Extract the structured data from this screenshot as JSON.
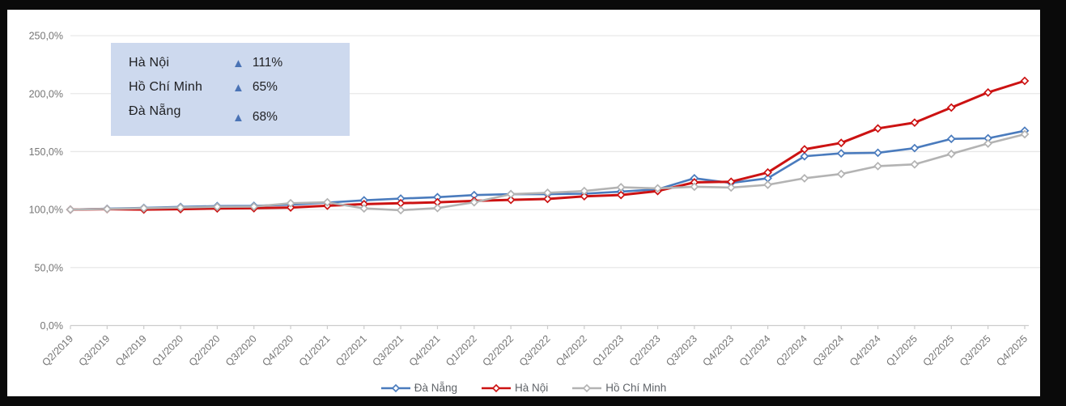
{
  "summary_box": {
    "background": "#cdd9ee",
    "triangle_color": "#4a73b5",
    "up_triangle_glyph": "▲",
    "rows": [
      {
        "label": "Hà Nội",
        "direction": "up",
        "value": "111%"
      },
      {
        "label": "Hồ Chí Minh",
        "direction": "up",
        "value": "65%"
      },
      {
        "label": "Đà Nẵng",
        "direction": "up",
        "value": "68%"
      }
    ]
  },
  "chart_data": {
    "type": "line",
    "title": "",
    "xlabel": "",
    "ylabel": "",
    "grid": true,
    "legend_position": "bottom",
    "ylim": [
      0,
      250
    ],
    "y_ticks": [
      "0,0%",
      "50,0%",
      "100,0%",
      "150,0%",
      "200,0%",
      "250,0%"
    ],
    "categories": [
      "Q2/2019",
      "Q3/2019",
      "Q4/2019",
      "Q1/2020",
      "Q2/2020",
      "Q3/2020",
      "Q4/2020",
      "Q1/2021",
      "Q2/2021",
      "Q3/2021",
      "Q4/2021",
      "Q1/2022",
      "Q2/2022",
      "Q3/2022",
      "Q4/2022",
      "Q1/2023",
      "Q2/2023",
      "Q3/2023",
      "Q4/2023",
      "Q1/2024",
      "Q2/2024",
      "Q3/2024",
      "Q4/2024",
      "Q1/2025",
      "Q2/2025",
      "Q3/2025",
      "Q4/2025"
    ],
    "series": [
      {
        "name": "Đà Nẵng",
        "color": "#4a7bbd",
        "values": [
          100,
          100.7,
          101.5,
          102.3,
          103,
          103.2,
          104.2,
          106,
          108,
          109.5,
          110.7,
          112.5,
          113.3,
          113.3,
          113.7,
          115.5,
          117.5,
          127,
          123,
          127,
          146,
          148.5,
          149,
          153,
          161,
          161.5,
          168
        ]
      },
      {
        "name": "Hà Nội",
        "color": "#cc1212",
        "values": [
          100,
          100.4,
          100,
          100.4,
          101,
          101.2,
          101.8,
          103.3,
          104.7,
          105.5,
          106.3,
          107.5,
          108.4,
          109.2,
          111.5,
          112.6,
          116,
          123.5,
          124,
          132,
          152,
          157.5,
          170,
          175,
          188,
          201,
          211
        ]
      },
      {
        "name": "Hồ Chí Minh",
        "color": "#b3b3b3",
        "values": [
          100,
          100.5,
          101.2,
          101.8,
          102.4,
          102.6,
          105.5,
          106.3,
          101,
          99.5,
          101.3,
          106.3,
          113.3,
          114.5,
          116,
          119.3,
          118.3,
          119.7,
          119,
          121.4,
          127,
          130.7,
          137.5,
          139,
          148,
          157,
          165
        ]
      }
    ],
    "style": {
      "gridline_color": "#e8e8e8",
      "axis_color": "#cccccc",
      "axis_text_color": "#757575",
      "marker": "diamond"
    }
  }
}
